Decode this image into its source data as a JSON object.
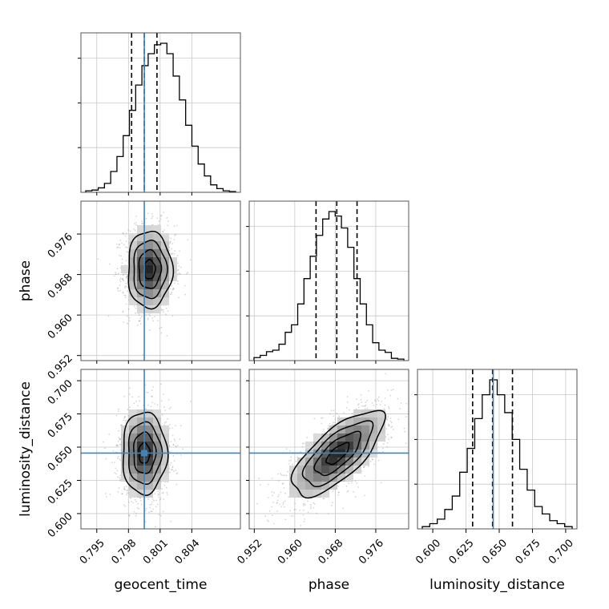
{
  "chart_data": {
    "type": "corner",
    "parameters": [
      "geocent_time",
      "phase",
      "luminosity_distance"
    ],
    "axis_labels": {
      "x": [
        "geocent_time",
        "phase",
        "luminosity_distance"
      ],
      "y": [
        "phase",
        "luminosity_distance"
      ]
    },
    "ranges": {
      "geocent_time": [
        0.7935,
        0.8086
      ],
      "phase": [
        0.951,
        0.9825
      ],
      "luminosity_distance": [
        0.5885,
        0.7085
      ]
    },
    "ticks": {
      "geocent_time": [
        0.795,
        0.798,
        0.801,
        0.804
      ],
      "phase": [
        0.952,
        0.96,
        0.968,
        0.976
      ],
      "luminosity_distance": [
        0.6,
        0.625,
        0.65,
        0.675,
        0.7
      ]
    },
    "tick_labels": {
      "geocent_time": [
        "0.795",
        "0.798",
        "0.801",
        "0.804"
      ],
      "phase": [
        "0.952",
        "0.960",
        "0.968",
        "0.976"
      ],
      "luminosity_distance": [
        "0.600",
        "0.625",
        "0.650",
        "0.675",
        "0.700"
      ]
    },
    "truths": {
      "geocent_time": 0.7995,
      "phase": null,
      "luminosity_distance": 0.6455
    },
    "quantiles": {
      "geocent_time": [
        0.7983,
        0.7995,
        0.8007
      ],
      "phase": [
        0.9642,
        0.9683,
        0.9723
      ],
      "luminosity_distance": [
        0.63,
        0.645,
        0.66
      ]
    },
    "histograms": {
      "geocent_time": [
        0.01,
        0.015,
        0.03,
        0.06,
        0.14,
        0.24,
        0.38,
        0.55,
        0.72,
        0.85,
        0.93,
        0.99,
        1.0,
        0.93,
        0.78,
        0.62,
        0.45,
        0.31,
        0.19,
        0.11,
        0.05,
        0.025,
        0.01,
        0.005
      ],
      "phase": [
        0.02,
        0.035,
        0.06,
        0.07,
        0.11,
        0.19,
        0.24,
        0.38,
        0.55,
        0.7,
        0.84,
        0.95,
        1.0,
        0.97,
        0.89,
        0.76,
        0.55,
        0.38,
        0.24,
        0.12,
        0.07,
        0.055,
        0.015,
        0.01
      ],
      "luminosity_distance": [
        0.015,
        0.035,
        0.065,
        0.13,
        0.22,
        0.38,
        0.54,
        0.74,
        0.9,
        1.0,
        0.9,
        0.78,
        0.6,
        0.4,
        0.26,
        0.15,
        0.1,
        0.055,
        0.035,
        0.015
      ]
    },
    "joint": [
      {
        "x": "geocent_time",
        "y": "phase",
        "center": [
          0.8,
          0.969
        ],
        "sd": [
          0.00105,
          0.0038
        ],
        "corr": 0.0
      },
      {
        "x": "geocent_time",
        "y": "luminosity_distance",
        "center": [
          0.7995,
          0.6455
        ],
        "sd": [
          0.00105,
          0.0155
        ],
        "corr": 0.0
      },
      {
        "x": "phase",
        "y": "luminosity_distance",
        "center": [
          0.9685,
          0.645
        ],
        "sd": [
          0.0045,
          0.016
        ],
        "corr": 0.72
      }
    ],
    "colors": {
      "truth": "#4682b4",
      "hist": "#000000",
      "quantile": "#000000",
      "grid": "#c8c8c8",
      "points": "#888888"
    },
    "grid": true
  }
}
